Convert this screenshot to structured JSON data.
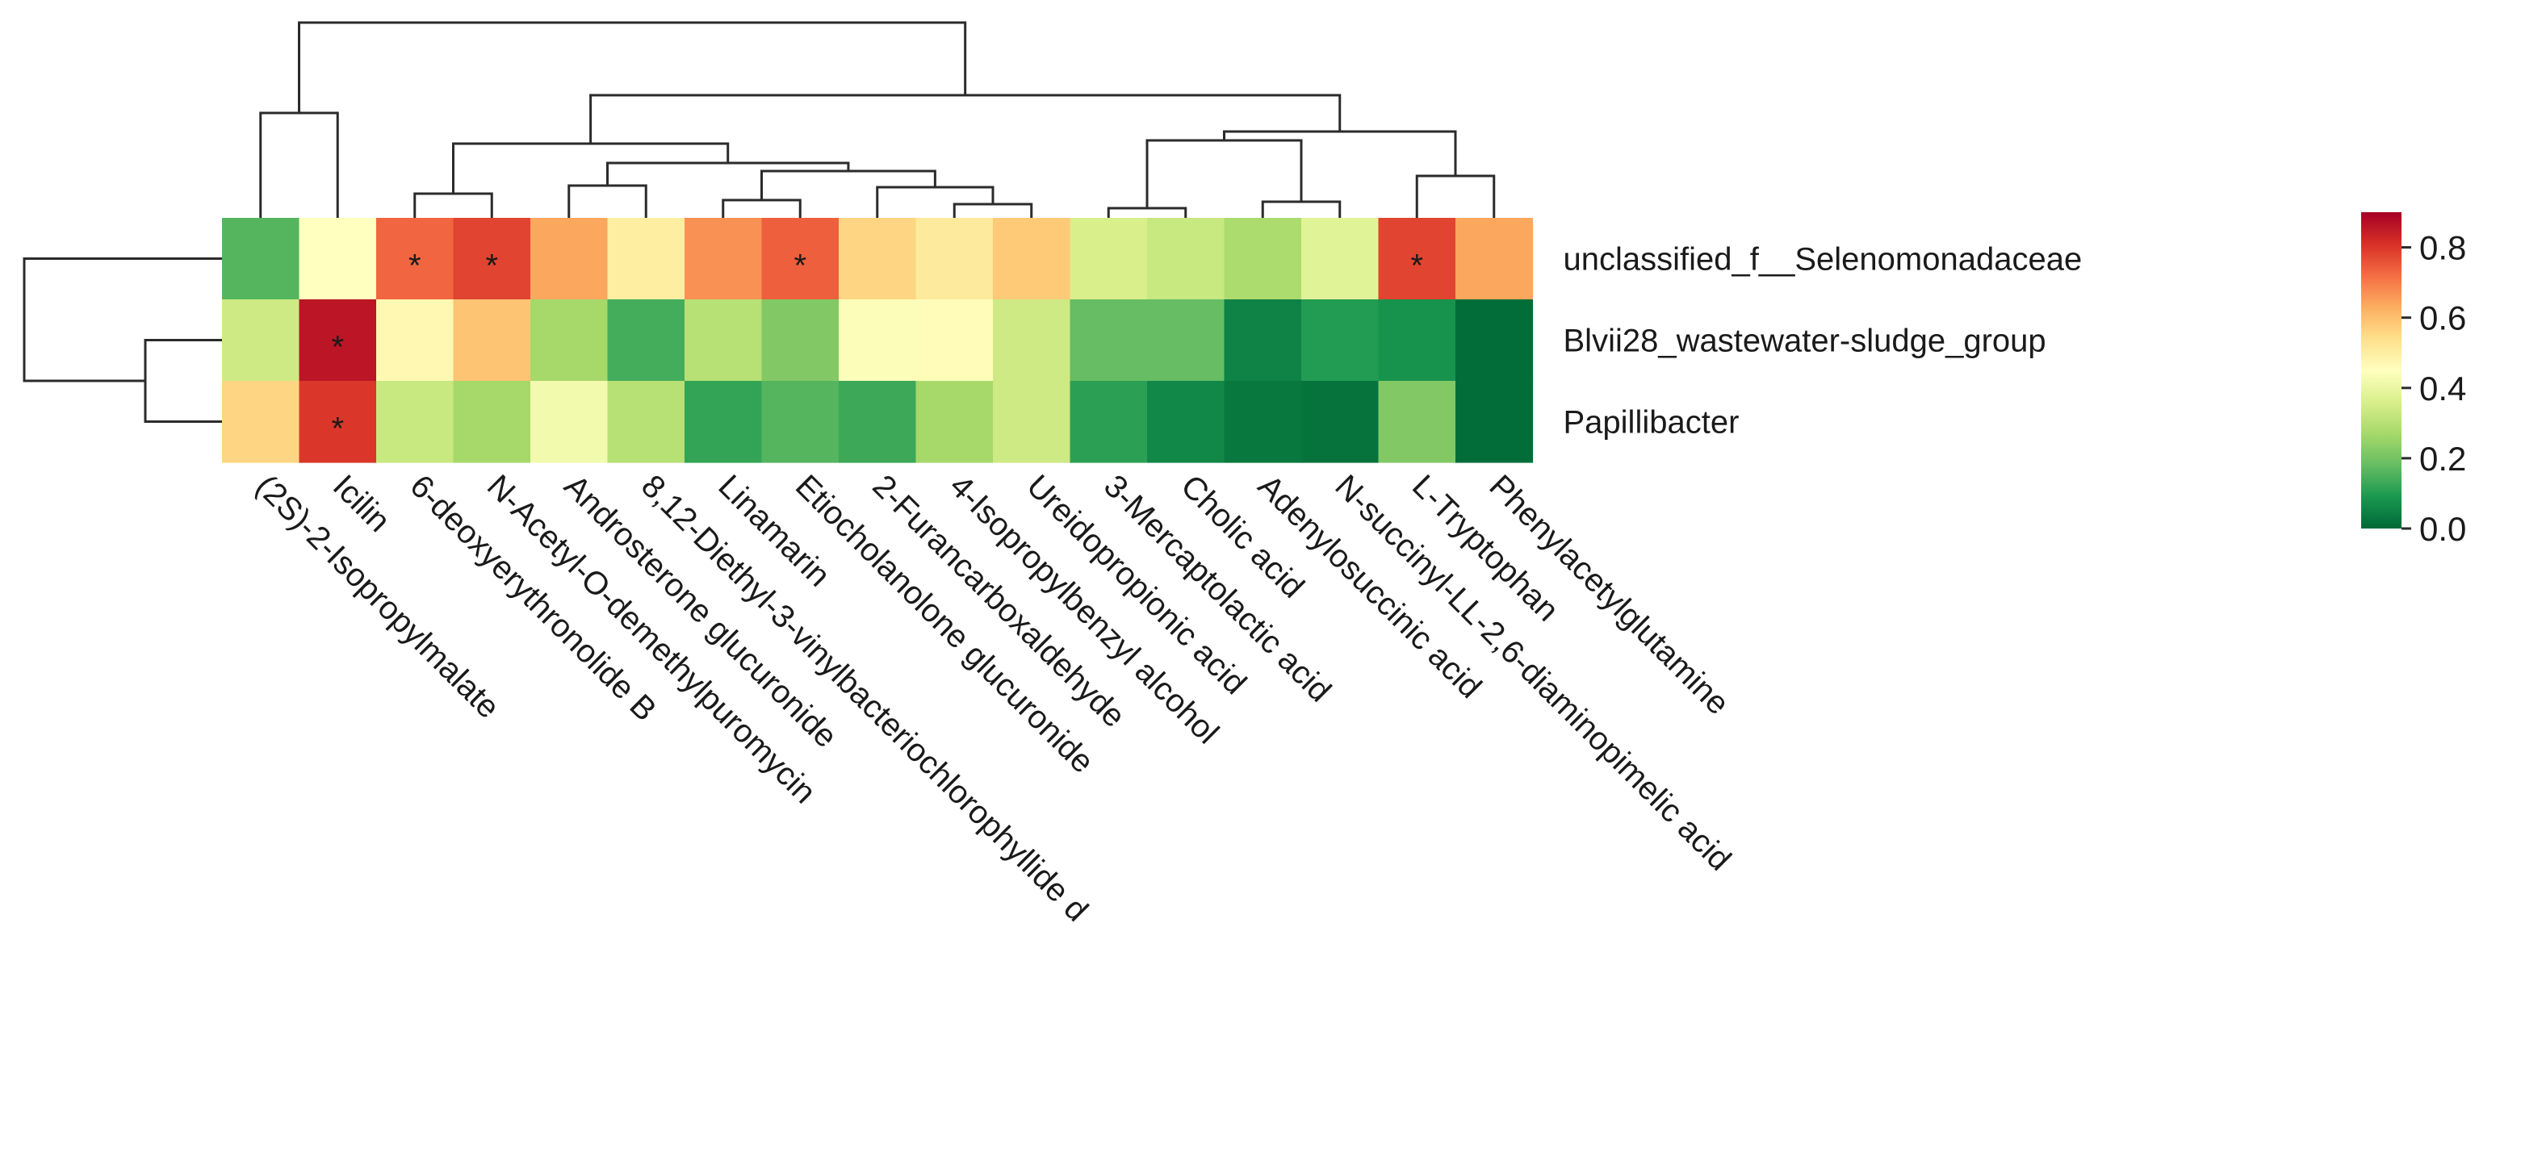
{
  "chart_data": {
    "type": "heatmap",
    "columns": [
      "(2S)-2-Isopropylmalate",
      "Icilin",
      "6-deoxyerythronolide B",
      "N-Acetyl-O-demethylpuromycin",
      "Androsterone glucuronide",
      "8,12-Diethyl-3-vinylbacteriochlorophyllide d",
      "Linamarin",
      "Etiocholanolone glucuronide",
      "2-Furancarboxaldehyde",
      "4-Isopropylbenzyl alcohol",
      "Ureidopropionic acid",
      "3-Mercaptolactic acid",
      "Cholic acid",
      "Adenylosuccinic acid",
      "N-succinyl-LL-2,6-diaminopimelic acid",
      "L-Tryptophan",
      "Phenylacetylglutamine"
    ],
    "rows": [
      "unclassified_f__Selenomonadaceae",
      "Blvii28_wastewater-sludge_group",
      "Papillibacter"
    ],
    "values": [
      [
        0.16,
        0.45,
        0.73,
        0.78,
        0.64,
        0.5,
        0.67,
        0.74,
        0.56,
        0.51,
        0.58,
        0.36,
        0.33,
        0.28,
        0.38,
        0.78,
        0.64
      ],
      [
        0.34,
        0.86,
        0.47,
        0.59,
        0.27,
        0.14,
        0.3,
        0.22,
        0.44,
        0.46,
        0.34,
        0.18,
        0.18,
        0.05,
        0.1,
        0.08,
        0.01
      ],
      [
        0.56,
        0.8,
        0.33,
        0.27,
        0.42,
        0.3,
        0.12,
        0.16,
        0.13,
        0.27,
        0.34,
        0.11,
        0.06,
        0.03,
        0.02,
        0.22,
        0.01
      ]
    ],
    "significant": [
      [
        false,
        false,
        true,
        true,
        false,
        false,
        false,
        true,
        false,
        false,
        false,
        false,
        false,
        false,
        false,
        true,
        false
      ],
      [
        false,
        true,
        false,
        false,
        false,
        false,
        false,
        false,
        false,
        false,
        false,
        false,
        false,
        false,
        false,
        false,
        false
      ],
      [
        false,
        true,
        false,
        false,
        false,
        false,
        false,
        false,
        false,
        false,
        false,
        false,
        false,
        false,
        false,
        false,
        false
      ]
    ],
    "significance_mark": "*",
    "colorbar": {
      "min": 0.0,
      "max": 0.9,
      "ticks": [
        0.0,
        0.2,
        0.4,
        0.6,
        0.8
      ],
      "tick_labels": [
        "0.0",
        "0.2",
        "0.4",
        "0.6",
        "0.8"
      ],
      "colors": [
        "#006837",
        "#1a9850",
        "#66bd63",
        "#a6d96a",
        "#d9ef8b",
        "#ffffbf",
        "#fee08b",
        "#fdae61",
        "#f46d43",
        "#d73027",
        "#a50026"
      ]
    },
    "column_dendrogram": true,
    "row_dendrogram": true,
    "title": "",
    "xlabel": "",
    "ylabel": ""
  }
}
